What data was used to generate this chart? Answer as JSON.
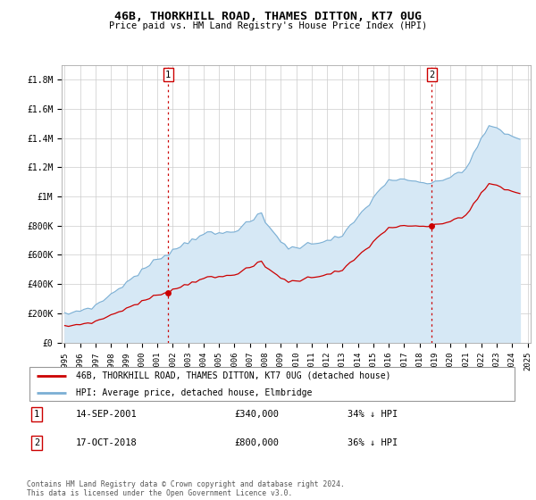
{
  "title": "46B, THORKHILL ROAD, THAMES DITTON, KT7 0UG",
  "subtitle": "Price paid vs. HM Land Registry's House Price Index (HPI)",
  "hpi_color": "#7bafd4",
  "hpi_fill_color": "#d6e8f5",
  "price_color": "#cc0000",
  "vline_color": "#cc0000",
  "background_color": "#ffffff",
  "grid_color": "#cccccc",
  "ylim": [
    0,
    1900000
  ],
  "yticks": [
    0,
    200000,
    400000,
    600000,
    800000,
    1000000,
    1200000,
    1400000,
    1600000,
    1800000
  ],
  "ytick_labels": [
    "£0",
    "£200K",
    "£400K",
    "£600K",
    "£800K",
    "£1M",
    "£1.2M",
    "£1.4M",
    "£1.6M",
    "£1.8M"
  ],
  "transaction1": {
    "date": "14-SEP-2001",
    "price": 340000,
    "label": "1",
    "hpi_diff": "34% ↓ HPI",
    "x": 2001.71
  },
  "transaction2": {
    "date": "17-OCT-2018",
    "price": 800000,
    "label": "2",
    "hpi_diff": "36% ↓ HPI",
    "x": 2018.79
  },
  "legend_property": "46B, THORKHILL ROAD, THAMES DITTON, KT7 0UG (detached house)",
  "legend_hpi": "HPI: Average price, detached house, Elmbridge",
  "footer": "Contains HM Land Registry data © Crown copyright and database right 2024.\nThis data is licensed under the Open Government Licence v3.0.",
  "xlim": [
    1994.8,
    2025.2
  ],
  "xtick_start": 1995,
  "xtick_end": 2025
}
